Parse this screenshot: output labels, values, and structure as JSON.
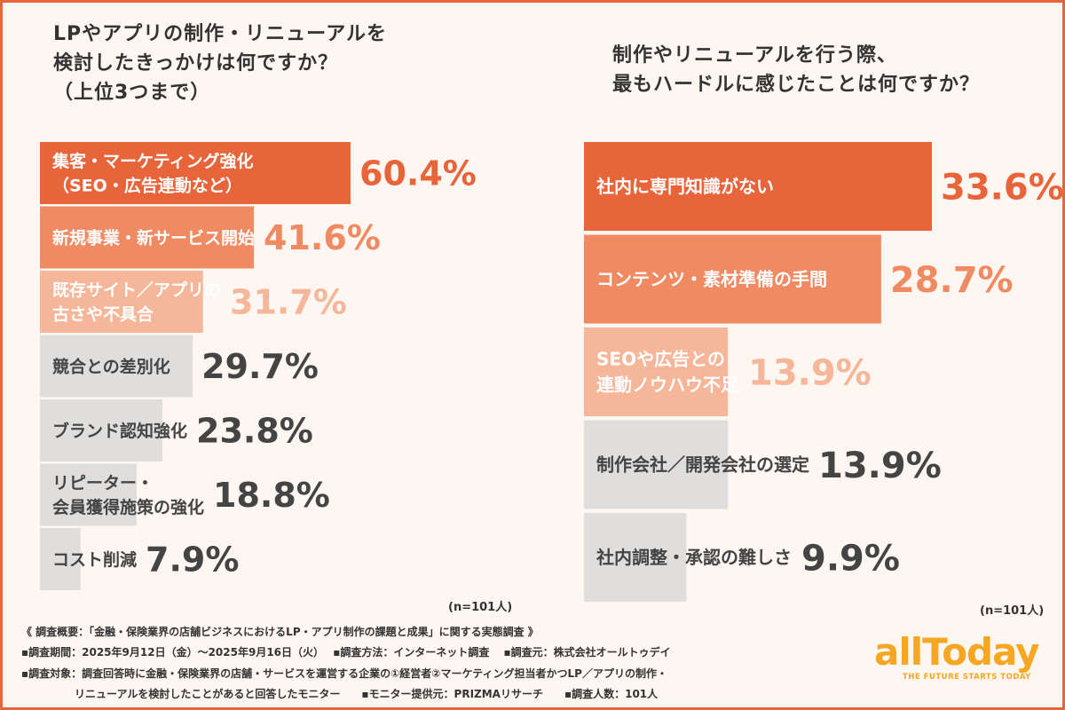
{
  "left_title": "LPやアプリの制作・リニューアルを\n検討したきっかけは何ですか？\n（上位3つまで）",
  "right_title": "制作やリニューアルを行う際、\n最もハードルに感じたことは何ですか？",
  "left_n": "(n=101人)",
  "right_n": "(n=101人)",
  "colors": {
    "frame": "#e8643a",
    "rank1": "#e8643a",
    "rank2": "#f08a62",
    "rank3": "#f6b69a",
    "other": "#e0dedd",
    "other_value": "#444444",
    "logo": "#f5a623"
  },
  "chart_data": [
    {
      "type": "bar",
      "orientation": "horizontal",
      "categories": [
        "集客・マーケティング強化\n（SEO・広告連動など）",
        "新規事業・新サービス開始",
        "既存サイト／アプリの\n古さや不具合",
        "競合との差別化",
        "ブランド認知強化",
        "リピーター・\n会員獲得施策の強化",
        "コスト削減"
      ],
      "values": [
        60.4,
        41.6,
        31.7,
        29.7,
        23.8,
        18.8,
        7.9
      ],
      "value_labels": [
        "60.4%",
        "41.6%",
        "31.7%",
        "29.7%",
        "23.8%",
        "18.8%",
        "7.9%"
      ]
    },
    {
      "type": "bar",
      "orientation": "horizontal",
      "categories": [
        "社内に専門知識がない",
        "コンテンツ・素材準備の手間",
        "SEOや広告との\n連動ノウハウ不足",
        "制作会社／開発会社の選定",
        "社内調整・承認の難しさ"
      ],
      "values": [
        33.6,
        28.7,
        13.9,
        13.9,
        9.9
      ],
      "value_labels": [
        "33.6%",
        "28.7%",
        "13.9%",
        "13.9%",
        "9.9%"
      ]
    }
  ],
  "footer": {
    "line1": "《 調査概要：「金融・保険業界の店舗ビジネスにおけるLP・アプリ制作の課題と成果」に関する実態調査 》",
    "line2": "▪調査期間：2025年9月12日（金）～2025年9月16日（火）　 ▪調査方法：インターネット調査　 ▪調査元：株式会社オールトゥデイ",
    "line3": "▪調査対象：調査回答時に金融・保険業界の店舗・サービスを運営する企業の①経営者②マーケティング担当者かつLP／アプリの制作・",
    "line4": "　　　　　リニューアルを検討したことがあると回答したモニター　　▪モニター提供元：PRIZMAリサーチ　　▪調査人数：101人"
  },
  "logo": {
    "word": "allToday",
    "tagline": "THE FUTURE STARTS TODAY"
  }
}
